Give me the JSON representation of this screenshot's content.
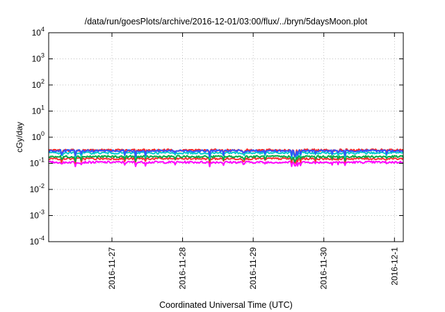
{
  "chart_data": {
    "type": "line",
    "title": "/data/run/goesPlots/archive/2016-12-01/03:00/flux/../bryn/5daysMoon.plot",
    "xlabel": "Coordinated Universal Time (UTC)",
    "ylabel": "cGy/day",
    "x_start": "2016-11-26T02:30",
    "x_end": "2016-12-01T03:00",
    "xticks": [
      {
        "label": "2016-11-27",
        "value": "2016-11-27T00:00"
      },
      {
        "label": "2016-11-28",
        "value": "2016-11-28T00:00"
      },
      {
        "label": "2016-11-29",
        "value": "2016-11-29T00:00"
      },
      {
        "label": "2016-11-30",
        "value": "2016-11-30T00:00"
      },
      {
        "label": "2016-12-1",
        "value": "2016-12-01T00:00"
      }
    ],
    "y_scale": "log",
    "ylim": [
      0.0001,
      10000
    ],
    "yticks": [
      {
        "base": "10",
        "exp": "4",
        "value": 10000
      },
      {
        "base": "10",
        "exp": "3",
        "value": 1000
      },
      {
        "base": "10",
        "exp": "2",
        "value": 100
      },
      {
        "base": "10",
        "exp": "1",
        "value": 10
      },
      {
        "base": "10",
        "exp": "0",
        "value": 1
      },
      {
        "base": "10",
        "exp": "-1",
        "value": 0.1
      },
      {
        "base": "10",
        "exp": "-2",
        "value": 0.01
      },
      {
        "base": "10",
        "exp": "-3",
        "value": 0.001
      },
      {
        "base": "10",
        "exp": "-4",
        "value": 0.0001
      }
    ],
    "grid": true,
    "legend": "none",
    "series": [
      {
        "color": "#ff00ff",
        "level": 0.11,
        "dip_level": 0.075
      },
      {
        "color": "#ff3333",
        "level": 0.15,
        "dip_level": 0.1
      },
      {
        "color": "#00aa44",
        "level": 0.18,
        "dip_level": 0.12
      },
      {
        "color": "#00cccc",
        "level": 0.25,
        "dip_level": 0.16
      },
      {
        "color": "#ff2222",
        "level": 0.32,
        "dip_level": 0.2
      },
      {
        "color": "#3355ff",
        "level": 0.3,
        "dip_level": 0.18
      }
    ]
  }
}
